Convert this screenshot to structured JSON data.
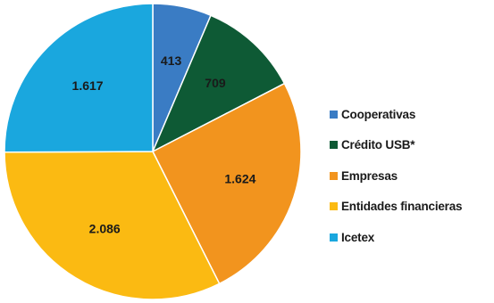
{
  "chart_data": {
    "type": "pie",
    "categories": [
      "Cooperativas",
      "Crédito USB*",
      "Empresas",
      "Entidades financieras",
      "Icetex"
    ],
    "values": [
      413,
      709,
      1624,
      2086,
      1617
    ],
    "value_labels": [
      "413",
      "709",
      "1.624",
      "2.086",
      "1.617"
    ],
    "colors": [
      "#3A7CC4",
      "#0E5A35",
      "#F2941E",
      "#FBBA12",
      "#1AA7DE"
    ],
    "start_angle_deg": 0,
    "direction": "clockwise",
    "legend_position": "right"
  }
}
